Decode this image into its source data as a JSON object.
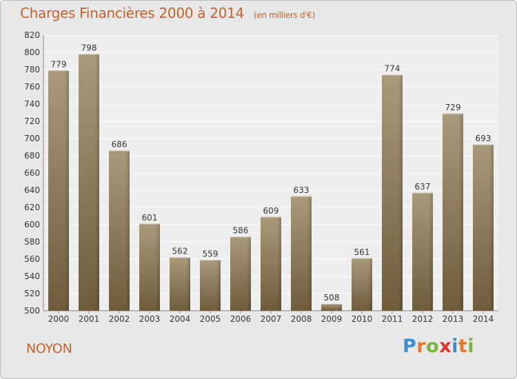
{
  "title": "Charges Financières 2000 à 2014",
  "subtitle": "(en milliers d'€)",
  "city": "NOYON",
  "logo": {
    "letters": [
      {
        "ch": "P",
        "color": "#3b8fd0"
      },
      {
        "ch": "r",
        "color": "#e47a2a"
      },
      {
        "ch": "o",
        "color": "#7ab541"
      },
      {
        "ch": "x",
        "color": "#e0312b"
      },
      {
        "ch": "i",
        "color": "#3b8fd0"
      },
      {
        "ch": "t",
        "color": "#e47a2a"
      },
      {
        "ch": "i",
        "color": "#7ab541"
      }
    ]
  },
  "colors": {
    "title": "#c8602c",
    "bar_top": "#a99a7c",
    "bar_bottom": "#6e5c3c",
    "background": "#e8e8e8",
    "plot_bg": "#eeeeee",
    "grid": "#ffffff"
  },
  "chart_data": {
    "type": "bar",
    "categories": [
      "2000",
      "2001",
      "2002",
      "2003",
      "2004",
      "2005",
      "2006",
      "2007",
      "2008",
      "2009",
      "2010",
      "2011",
      "2012",
      "2013",
      "2014"
    ],
    "values": [
      779,
      798,
      686,
      601,
      562,
      559,
      586,
      609,
      633,
      508,
      561,
      774,
      637,
      729,
      693
    ],
    "yticks": [
      500,
      520,
      540,
      560,
      580,
      600,
      620,
      640,
      660,
      680,
      700,
      720,
      740,
      760,
      780,
      800,
      820
    ],
    "ylim": [
      500,
      820
    ],
    "grid": true,
    "legend": "none"
  }
}
